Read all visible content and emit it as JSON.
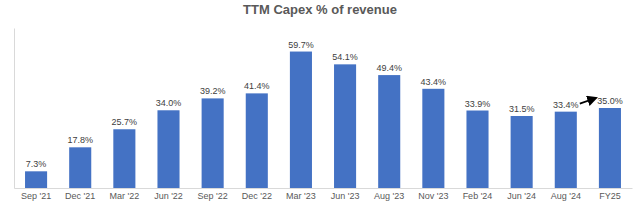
{
  "chart_data": {
    "type": "bar",
    "title": "TTM Capex % of revenue",
    "categories": [
      "Sep '21",
      "Dec '21",
      "Mar '22",
      "Jun '22",
      "Sep '22",
      "Dec '22",
      "Mar '23",
      "Jun '23",
      "Aug '23",
      "Nov '23",
      "Feb '24",
      "Jun '24",
      "Aug '24",
      "FY25"
    ],
    "values": [
      7.3,
      17.8,
      25.7,
      34.0,
      39.2,
      41.4,
      59.7,
      54.1,
      49.4,
      43.4,
      33.9,
      31.5,
      33.4,
      35.0
    ],
    "value_labels": [
      "7.3%",
      "17.8%",
      "25.7%",
      "34.0%",
      "39.2%",
      "41.4%",
      "59.7%",
      "54.1%",
      "49.4%",
      "43.4%",
      "33.9%",
      "31.5%",
      "33.4%",
      "35.0%"
    ],
    "color": "#4472c4",
    "ylim": [
      0,
      70
    ],
    "yticks": [],
    "grid": false,
    "data_labels": true,
    "tick_labels": "x"
  }
}
